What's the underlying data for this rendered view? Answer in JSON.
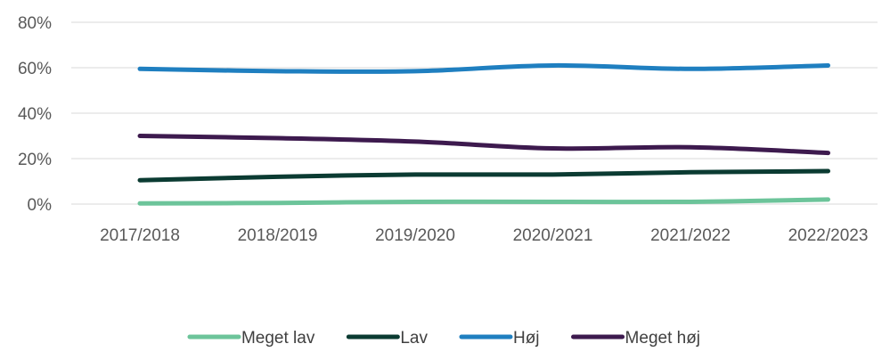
{
  "chart_data": {
    "type": "line",
    "title": "",
    "xlabel": "",
    "ylabel": "",
    "categories": [
      "2017/2018",
      "2018/2019",
      "2019/2020",
      "2020/2021",
      "2021/2022",
      "2022/2023"
    ],
    "y_ticks": [
      "0%",
      "20%",
      "40%",
      "60%",
      "80%"
    ],
    "ylim": [
      0,
      80
    ],
    "grid": true,
    "legend_position": "bottom",
    "series": [
      {
        "name": "Meget lav",
        "color": "#6cc49a",
        "values": [
          0.3,
          0.5,
          1.0,
          1.0,
          1.0,
          2.0
        ]
      },
      {
        "name": "Lav",
        "color": "#0b3b32",
        "values": [
          10.5,
          12.0,
          13.0,
          13.0,
          14.0,
          14.5
        ]
      },
      {
        "name": "Høj",
        "color": "#1f7fc0",
        "values": [
          59.5,
          58.5,
          58.5,
          61.0,
          59.5,
          61.0
        ]
      },
      {
        "name": "Meget høj",
        "color": "#3d1a4e",
        "values": [
          30.0,
          29.0,
          27.5,
          24.5,
          25.0,
          22.5
        ]
      }
    ]
  }
}
